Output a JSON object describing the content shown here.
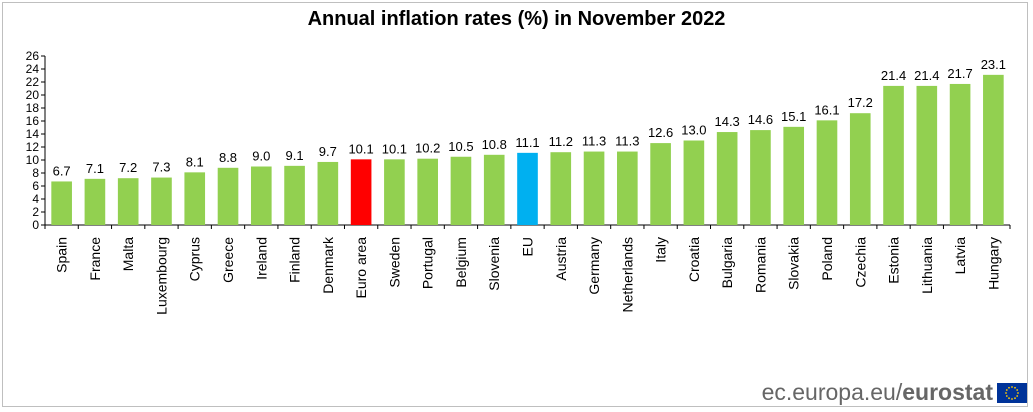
{
  "chart_data": {
    "type": "bar",
    "title": "Annual inflation rates (%) in November 2022",
    "categories": [
      "Spain",
      "France",
      "Malta",
      "Luxembourg",
      "Cyprus",
      "Greece",
      "Ireland",
      "Finland",
      "Denmark",
      "Euro area",
      "Sweden",
      "Portugal",
      "Belgium",
      "Slovenia",
      "EU",
      "Austria",
      "Germany",
      "Netherlands",
      "Italy",
      "Croatia",
      "Bulgaria",
      "Romania",
      "Slovakia",
      "Poland",
      "Czechia",
      "Estonia",
      "Lithuania",
      "Latvia",
      "Hungary"
    ],
    "values": [
      6.7,
      7.1,
      7.2,
      7.3,
      8.1,
      8.8,
      9.0,
      9.1,
      9.7,
      10.1,
      10.1,
      10.2,
      10.5,
      10.8,
      11.1,
      11.2,
      11.3,
      11.3,
      12.6,
      13.0,
      14.3,
      14.6,
      15.1,
      16.1,
      17.2,
      21.4,
      21.4,
      21.7,
      23.1
    ],
    "value_labels": [
      "6.7",
      "7.1",
      "7.2",
      "7.3",
      "8.1",
      "8.8",
      "9.0",
      "9.1",
      "9.7",
      "10.1",
      "10.1",
      "10.2",
      "10.5",
      "10.8",
      "11.1",
      "11.2",
      "11.3",
      "11.3",
      "12.6",
      "13.0",
      "14.3",
      "14.6",
      "15.1",
      "16.1",
      "17.2",
      "21.4",
      "21.4",
      "21.7",
      "23.1"
    ],
    "colors": {
      "default": "#92d050",
      "Euro area": "#ff0000",
      "EU": "#00b0f0"
    },
    "yticks": [
      "0",
      "2",
      "4",
      "6",
      "8",
      "10",
      "12",
      "14",
      "16",
      "18",
      "20",
      "22",
      "24",
      "26"
    ],
    "ylim": [
      0,
      26
    ],
    "grid": false,
    "xlabel": "",
    "ylabel": ""
  },
  "footer": {
    "domain": "ec.europa.eu/",
    "brand": "eurostat"
  }
}
